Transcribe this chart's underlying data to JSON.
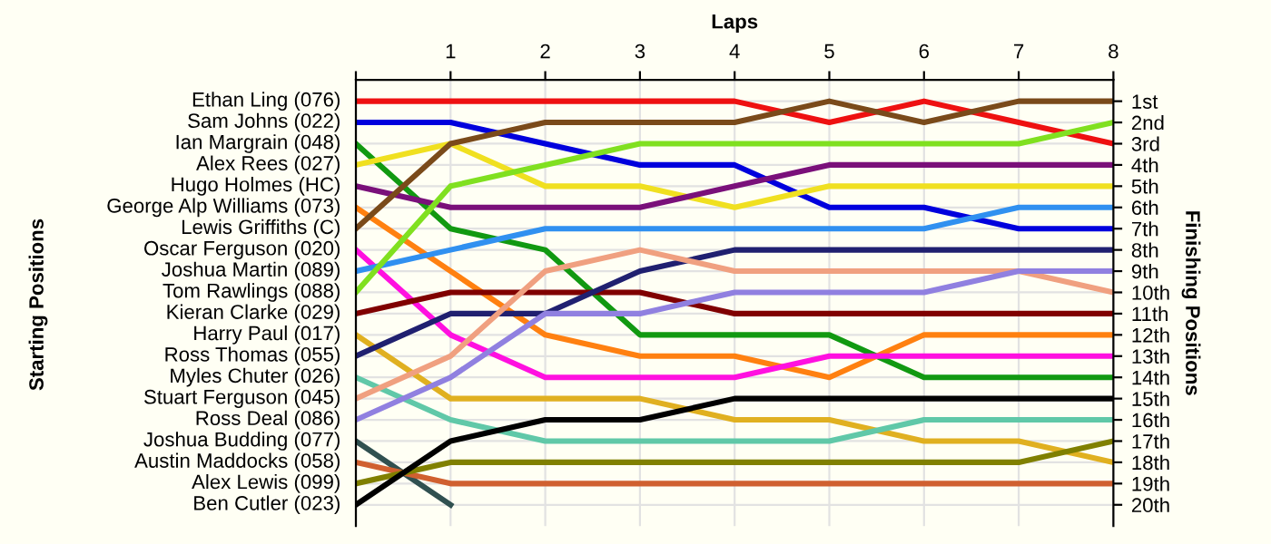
{
  "chart_data": {
    "type": "line",
    "xlabel": "Laps",
    "ylabel": "Finishing Positions",
    "x": [
      0,
      1,
      2,
      3,
      4,
      5,
      6,
      7,
      8
    ],
    "xlim": [
      0,
      8
    ],
    "xticks": [
      {
        "value": 0,
        "label": null
      },
      1,
      2,
      3,
      4,
      5,
      6,
      7,
      8
    ],
    "ylim": [
      21,
      0
    ],
    "yticks": [
      {
        "value": 1,
        "label": "1st"
      },
      {
        "value": 2,
        "label": "2nd"
      },
      {
        "value": 3,
        "label": "3rd"
      },
      {
        "value": 4,
        "label": "4th"
      },
      {
        "value": 5,
        "label": "5th"
      },
      {
        "value": 6,
        "label": "6th"
      },
      {
        "value": 7,
        "label": "7th"
      },
      {
        "value": 8,
        "label": "8th"
      },
      {
        "value": 9,
        "label": "9th"
      },
      {
        "value": 10,
        "label": "10th"
      },
      {
        "value": 11,
        "label": "11th"
      },
      {
        "value": 12,
        "label": "12th"
      },
      {
        "value": 13,
        "label": "13th"
      },
      {
        "value": 14,
        "label": "14th"
      },
      {
        "value": 15,
        "label": "15th"
      },
      {
        "value": 16,
        "label": "16th"
      },
      {
        "value": 17,
        "label": "17th"
      },
      {
        "value": 18,
        "label": "18th"
      },
      {
        "value": 19,
        "label": "19th"
      },
      {
        "value": 20,
        "label": "20th"
      }
    ],
    "annotations": [
      "Starting Positions"
    ],
    "grid": true,
    "marker": "none",
    "line_style": "solid",
    "series": [
      {
        "name": "Ethan Ling (076)",
        "color": "#ee1111",
        "values": [
          1,
          1,
          1,
          1,
          1,
          2,
          1,
          2,
          3
        ]
      },
      {
        "name": "Sam Johns (022)",
        "color": "#0000dd",
        "values": [
          2,
          2,
          3,
          4,
          4,
          6,
          6,
          7,
          7
        ]
      },
      {
        "name": "Ian Margrain (048)",
        "color": "#119911",
        "values": [
          3,
          7,
          8,
          12,
          12,
          12,
          14,
          14,
          14
        ]
      },
      {
        "name": "Alex Rees (027)",
        "color": "#f0e020",
        "values": [
          4,
          3,
          5,
          5,
          6,
          5,
          5,
          5,
          5
        ]
      },
      {
        "name": "Hugo Holmes (HC)",
        "color": "#7a107a",
        "values": [
          5,
          6,
          6,
          6,
          5,
          4,
          4,
          4,
          4
        ]
      },
      {
        "name": "George Alp Williams (073)",
        "color": "#ff8010",
        "values": [
          6,
          9,
          12,
          13,
          13,
          14,
          12,
          12,
          12
        ]
      },
      {
        "name": "Lewis Griffiths (C)",
        "color": "#7a4a1a",
        "values": [
          7,
          3,
          2,
          2,
          2,
          1,
          2,
          1,
          1
        ]
      },
      {
        "name": "Oscar Ferguson (020)",
        "color": "#ff10e0",
        "values": [
          8,
          12,
          14,
          14,
          14,
          13,
          13,
          13,
          13
        ]
      },
      {
        "name": "Joshua Martin (089)",
        "color": "#3090f0",
        "values": [
          9,
          8,
          7,
          7,
          7,
          7,
          7,
          6,
          6
        ]
      },
      {
        "name": "Tom Rawlings (088)",
        "color": "#80e020",
        "values": [
          10,
          5,
          4,
          3,
          3,
          3,
          3,
          3,
          2
        ]
      },
      {
        "name": "Kieran Clarke (029)",
        "color": "#800000",
        "values": [
          11,
          10,
          10,
          10,
          11,
          11,
          11,
          11,
          11
        ]
      },
      {
        "name": "Harry Paul (017)",
        "color": "#e0b020",
        "values": [
          12,
          15,
          15,
          15,
          16,
          16,
          17,
          17,
          18
        ]
      },
      {
        "name": "Ross Thomas (055)",
        "color": "#202070",
        "values": [
          13,
          11,
          11,
          9,
          8,
          8,
          8,
          8,
          8
        ]
      },
      {
        "name": "Myles Chuter (026)",
        "color": "#60c8a8",
        "values": [
          14,
          16,
          17,
          17,
          17,
          17,
          16,
          16,
          16
        ]
      },
      {
        "name": "Stuart Ferguson (045)",
        "color": "#f0a080",
        "values": [
          15,
          13,
          9,
          8,
          9,
          9,
          9,
          9,
          10
        ]
      },
      {
        "name": "Ross Deal (086)",
        "color": "#9080e0",
        "values": [
          16,
          14,
          11,
          11,
          10,
          10,
          10,
          9,
          9
        ]
      },
      {
        "name": "Joshua Budding (077)",
        "color": "#305050",
        "values": [
          17,
          20,
          null,
          null,
          null,
          null,
          null,
          null,
          null
        ]
      },
      {
        "name": "Austin Maddocks (058)",
        "color": "#d06030",
        "values": [
          18,
          19,
          19,
          19,
          19,
          19,
          19,
          19,
          19
        ]
      },
      {
        "name": "Alex Lewis (099)",
        "color": "#808000",
        "values": [
          19,
          18,
          18,
          18,
          18,
          18,
          18,
          18,
          17
        ]
      },
      {
        "name": "Ben Cutler (023)",
        "color": "#000000",
        "values": [
          20,
          17,
          16,
          16,
          15,
          15,
          15,
          15,
          15
        ]
      }
    ]
  }
}
